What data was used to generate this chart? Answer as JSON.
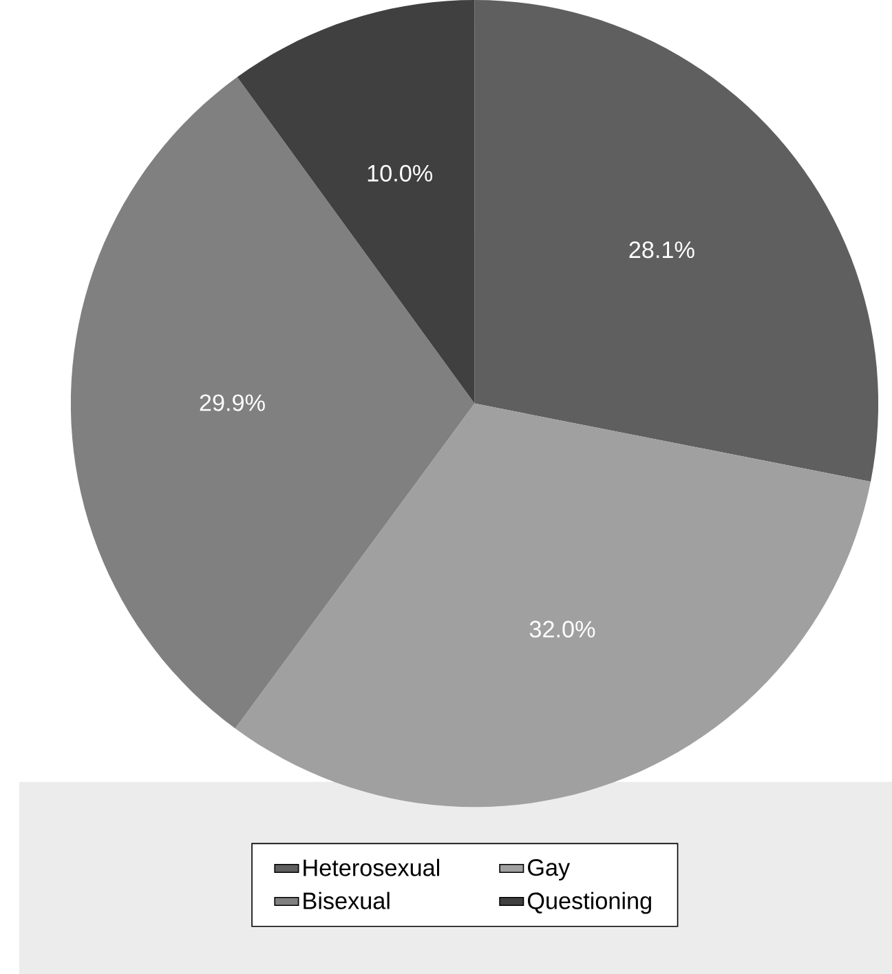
{
  "chart_data": {
    "type": "pie",
    "categories": [
      "Heterosexual",
      "Gay",
      "Bisexual",
      "Questioning"
    ],
    "values": [
      28.1,
      32.0,
      29.9,
      10.0
    ],
    "colors": [
      "#5f5f5f",
      "#a0a0a0",
      "#808080",
      "#404040"
    ],
    "value_labels": [
      "28.1%",
      "32.0%",
      "29.9%",
      "10.0%"
    ],
    "legend": "bottom"
  }
}
